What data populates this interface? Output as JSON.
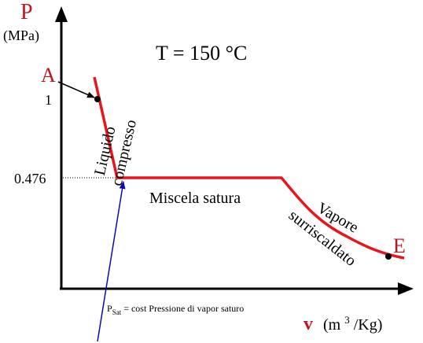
{
  "axis": {
    "y_symbol": "P",
    "y_unit": "(MPa)",
    "x_symbol": "v",
    "x_unit_prefix": "(m",
    "x_unit_sup": "3",
    "x_unit_suffix": "/Kg)"
  },
  "title": "T = 150 °C",
  "ticks": {
    "y_top": "1",
    "y_sat": "0.476"
  },
  "points": {
    "A": "A",
    "E": "E"
  },
  "regions": {
    "compressed_liquid_line1": "Liquido",
    "compressed_liquid_line2": "compresso",
    "saturated_mixture": "Miscela satura",
    "superheated_line1": "Vapore",
    "superheated_line2": "surriscaldato"
  },
  "annotation": {
    "p_symbol": "P",
    "p_subscript": "Sat",
    "text": " = cost  Pressione di vapor saturo"
  },
  "colors": {
    "process_curve": "#e8141e",
    "axis_letter": "#c0141e",
    "pointer_arrow": "#0a0ab4",
    "axes": "#000000"
  }
}
